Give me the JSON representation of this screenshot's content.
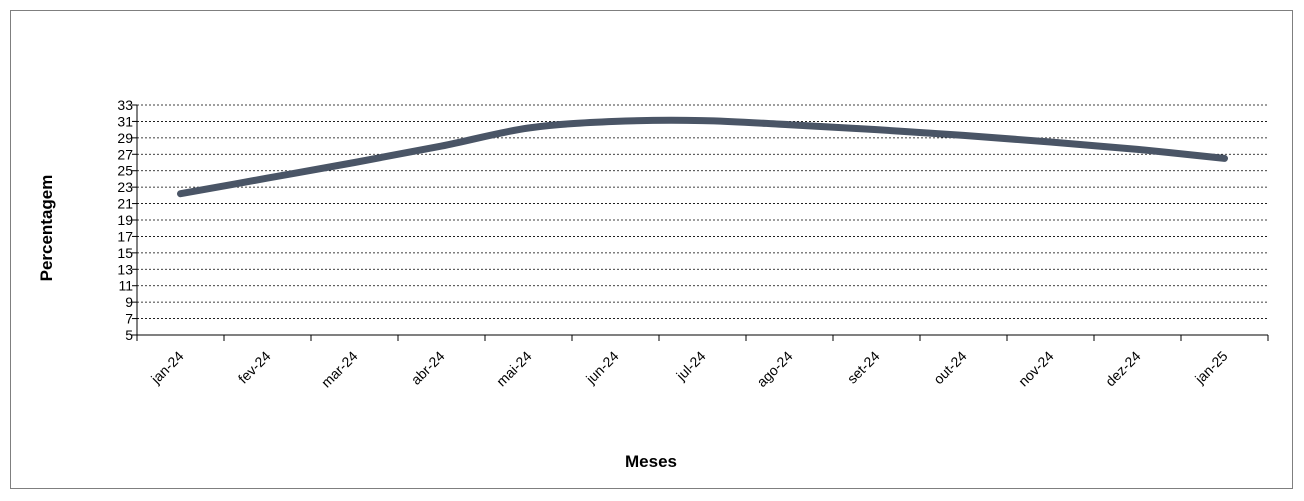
{
  "chart_data": {
    "type": "line",
    "title": "",
    "xlabel": "Meses",
    "ylabel": "Percentagem",
    "categories": [
      "jan-24",
      "fev-24",
      "mar-24",
      "abr-24",
      "mai-24",
      "jun-24",
      "jul-24",
      "ago-24",
      "set-24",
      "out-24",
      "nov-24",
      "dez-24",
      "jan-25"
    ],
    "series": [
      {
        "values": [
          22.2,
          24.1,
          26.0,
          28.0,
          30.2,
          31.0,
          31.1,
          30.6,
          30.0,
          29.3,
          28.5,
          27.6,
          26.5
        ]
      }
    ],
    "ylim": [
      5,
      33
    ],
    "yticks": [
      5,
      7,
      9,
      11,
      13,
      15,
      17,
      19,
      21,
      23,
      25,
      27,
      29,
      31,
      33
    ],
    "grid": "horizontal-dashed",
    "legend": "none",
    "line_color": "#4a5566",
    "smooth": true
  }
}
